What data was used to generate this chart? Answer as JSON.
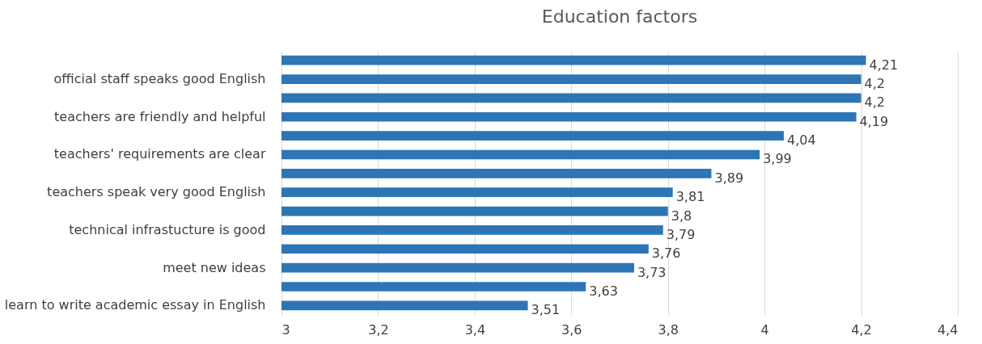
{
  "chart_data": {
    "type": "bar",
    "orientation": "horizontal",
    "title": "Education factors",
    "categories": [
      null,
      "official staff speaks good English",
      null,
      "teachers are friendly and helpful",
      null,
      "teachers' requirements are clear",
      null,
      "teachers speak very good English",
      null,
      "technical infrastucture is good",
      null,
      "meet new ideas",
      null,
      "learn to write academic essay in English"
    ],
    "values": [
      4.21,
      4.2,
      4.2,
      4.19,
      4.04,
      3.99,
      3.89,
      3.81,
      3.8,
      3.79,
      3.76,
      3.73,
      3.63,
      3.51
    ],
    "value_labels": [
      "4,21",
      "4,2",
      "4,2",
      "4,19",
      "4,04",
      "3,99",
      "3,89",
      "3,81",
      "3,8",
      "3,79",
      "3,76",
      "3,73",
      "3,63",
      "3,51"
    ],
    "color": "#2e75b6",
    "xlim": [
      3,
      4.4
    ],
    "xticks": [
      3,
      {
        "value": 3.2,
        "label": "3,2"
      },
      {
        "value": 3.4,
        "label": "3,4"
      },
      {
        "value": 3.6,
        "label": "3,6"
      },
      {
        "value": 3.8,
        "label": "3,8"
      },
      4,
      {
        "value": 4.2,
        "label": "4,2"
      },
      {
        "value": 4.4,
        "label": "4,4"
      }
    ],
    "grid": "x"
  }
}
